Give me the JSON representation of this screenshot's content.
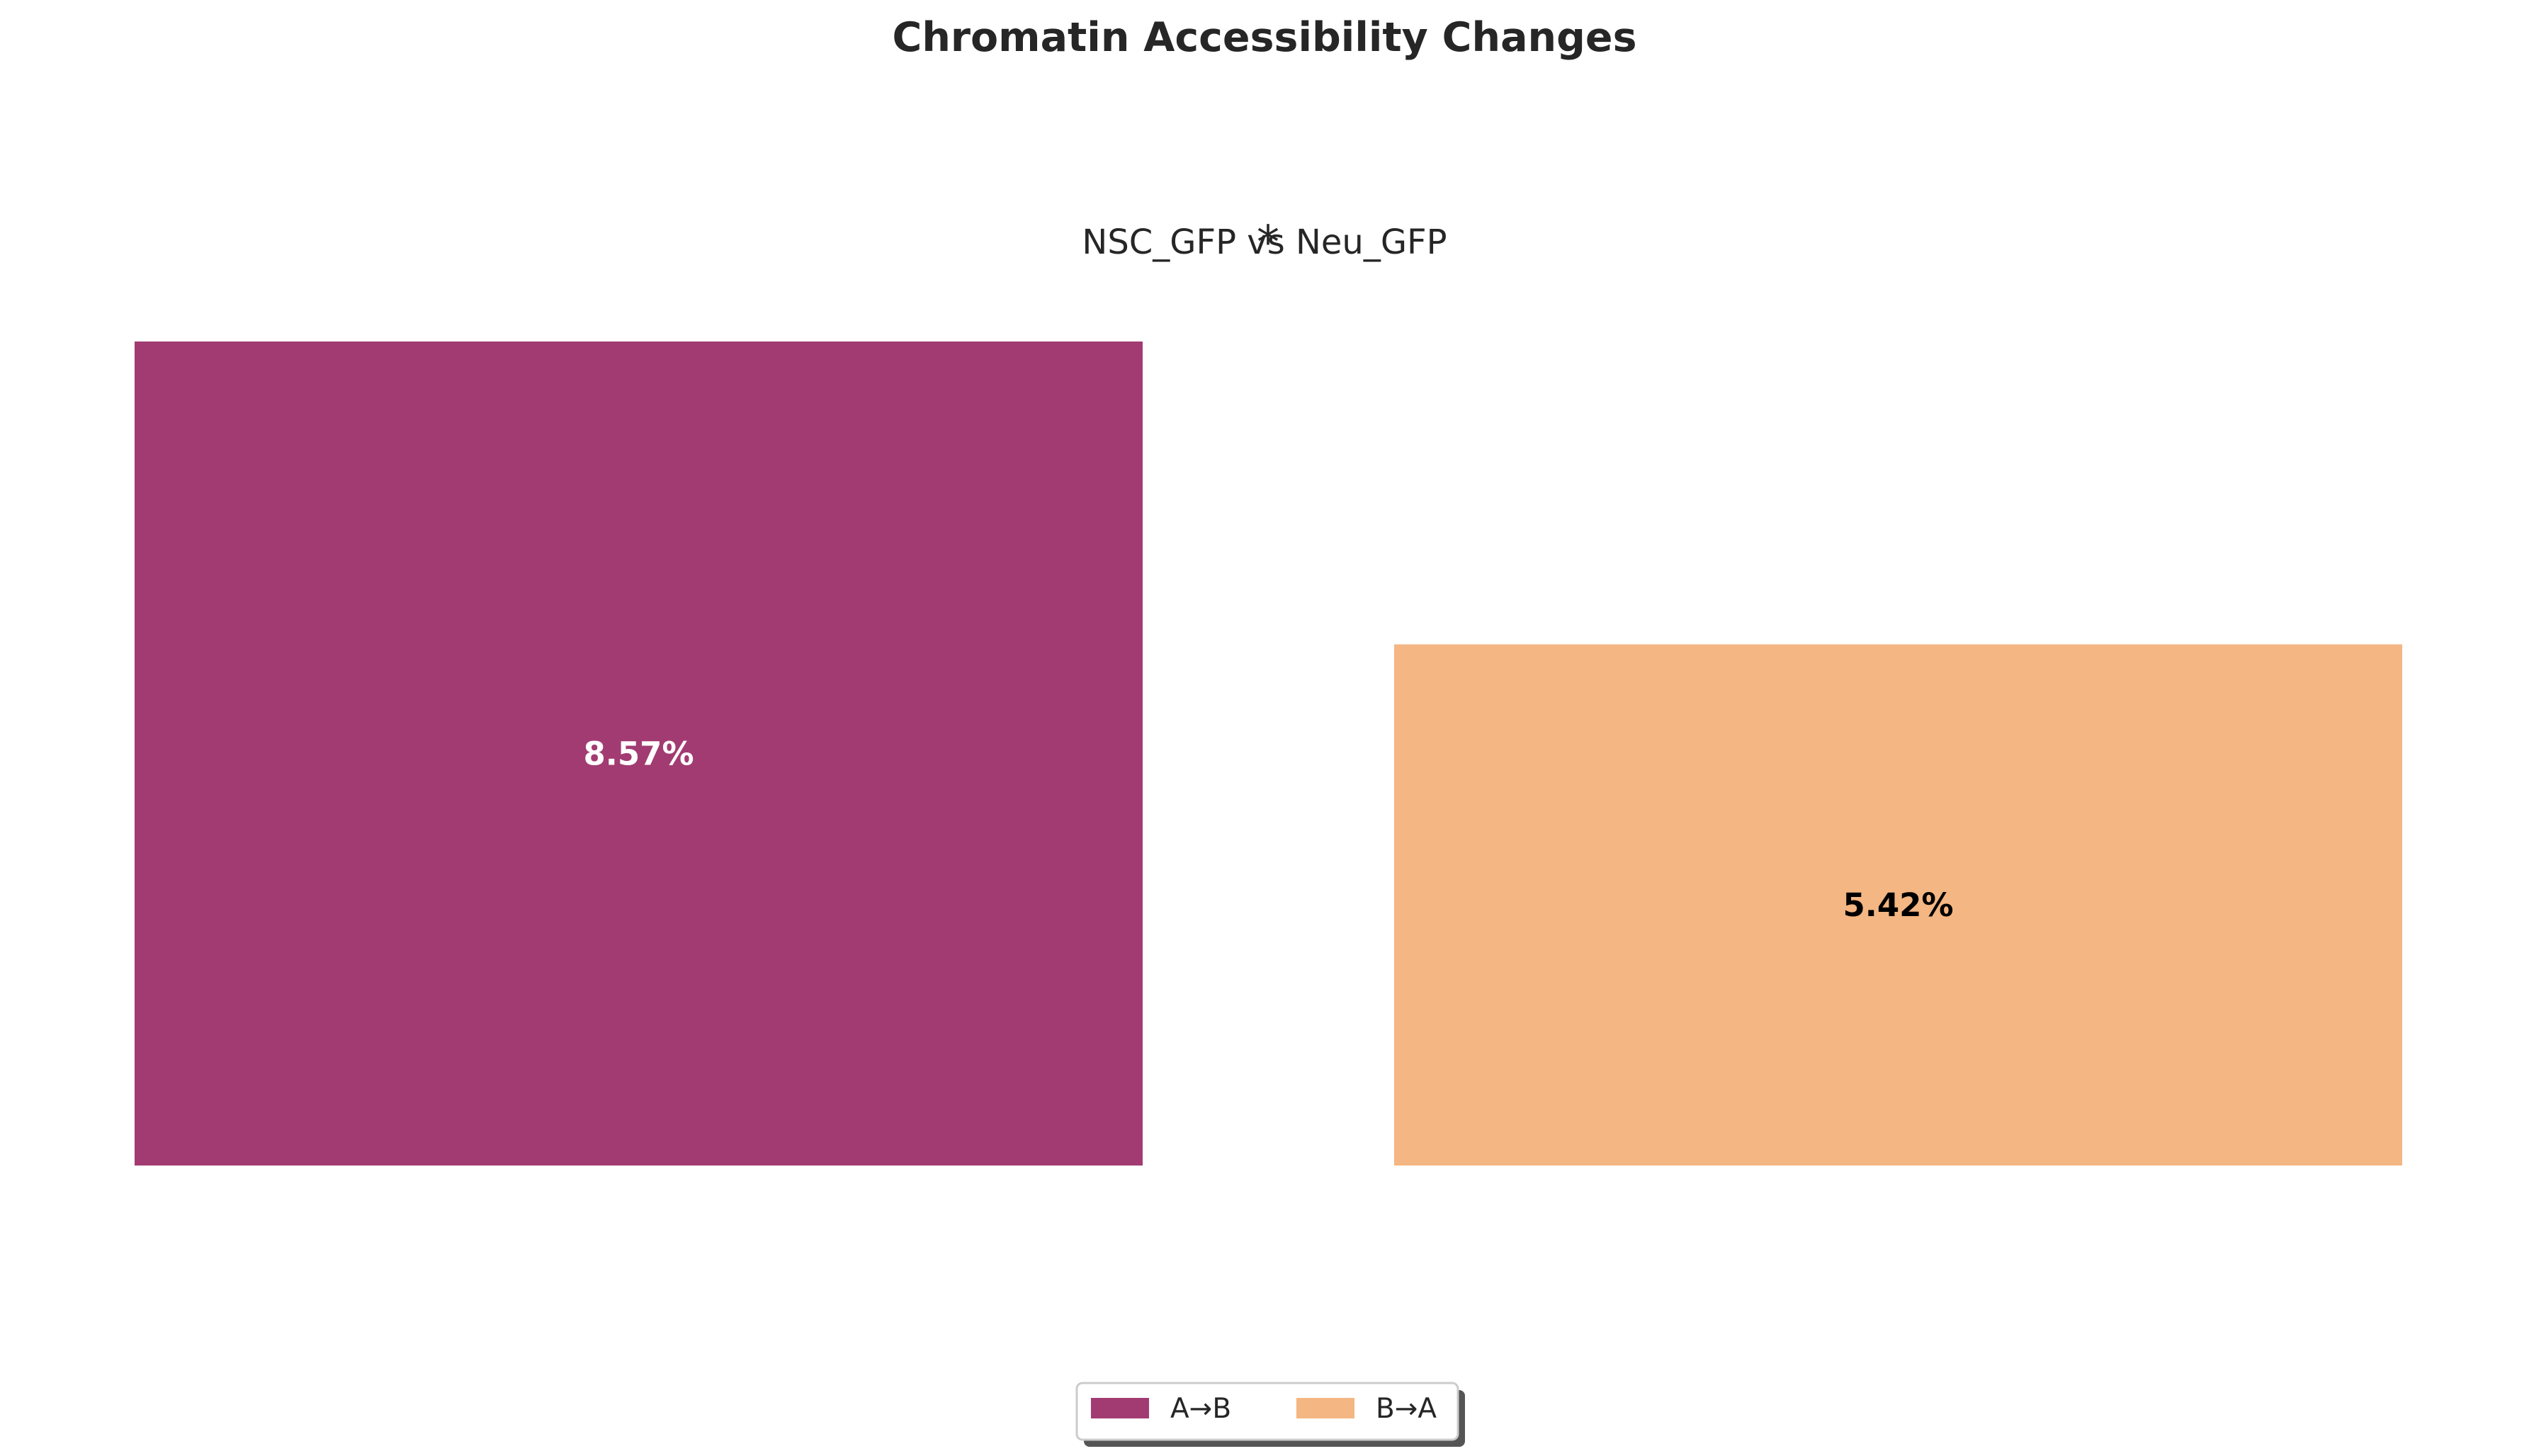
{
  "chart_data": {
    "type": "bar",
    "title": "Chromatin Accessibility Changes",
    "subtitle": "NSC_GFP vs Neu_GFP",
    "significance_marker": "*",
    "categories": [
      "A→B",
      "B→A"
    ],
    "values": [
      8.57,
      5.42
    ],
    "value_labels": [
      "8.57%",
      "5.42%"
    ],
    "colors": [
      "#a23b72",
      "#f4b682"
    ],
    "label_colors": [
      "#ffffff",
      "#000000"
    ],
    "ylim": [
      0,
      8.57
    ],
    "grid": false,
    "axes_visible": false,
    "legend": {
      "placement": "bottom-center",
      "entries": [
        "A→B",
        "B→A"
      ]
    }
  }
}
